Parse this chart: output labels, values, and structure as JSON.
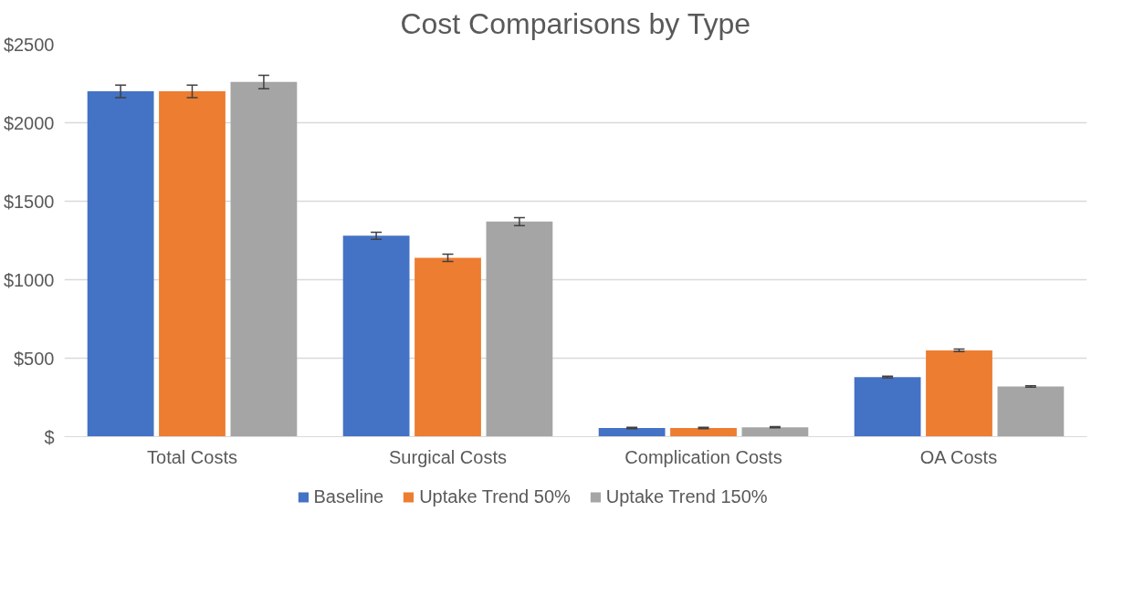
{
  "chart_data": {
    "type": "bar",
    "title": "Cost Comparisons by Type",
    "categories": [
      "Total Costs",
      "Surgical Costs",
      "Complication Costs",
      "OA Costs"
    ],
    "series": [
      {
        "name": "Baseline",
        "color": "#4472c4",
        "values": [
          2200,
          1280,
          55,
          380
        ],
        "errors": [
          40,
          23,
          4,
          5
        ]
      },
      {
        "name": "Uptake Trend 50%",
        "color": "#ed7d31",
        "values": [
          2200,
          1140,
          55,
          550
        ],
        "errors": [
          40,
          23,
          4,
          8
        ]
      },
      {
        "name": "Uptake Trend 150%",
        "color": "#a5a5a5",
        "values": [
          2260,
          1370,
          60,
          320
        ],
        "errors": [
          43,
          25,
          4,
          4
        ]
      }
    ],
    "ylim": [
      0,
      2500
    ],
    "yticks": [
      {
        "value": 0,
        "label": "$"
      },
      {
        "value": 500,
        "label": "$500"
      },
      {
        "value": 1000,
        "label": "$1000"
      },
      {
        "value": 1500,
        "label": "$1500"
      },
      {
        "value": 2000,
        "label": "$2000"
      },
      {
        "value": 2500,
        "label": "$2500"
      }
    ],
    "grid": "y",
    "legend": "bottom"
  }
}
